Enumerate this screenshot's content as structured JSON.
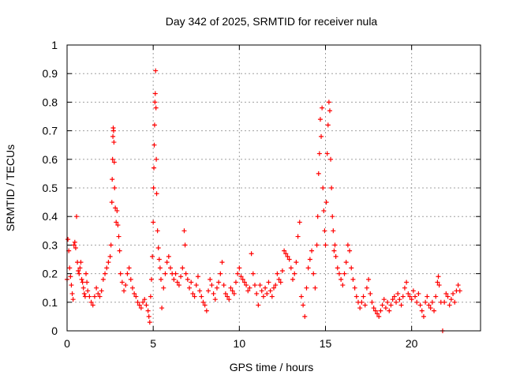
{
  "chart_data": {
    "type": "scatter",
    "title": "Day 342 of 2025, SRMTID for receiver nula",
    "xlabel": "GPS time / hours",
    "ylabel": "SRMTID / TECUs",
    "xlim": [
      0,
      24
    ],
    "ylim": [
      0,
      1
    ],
    "xticks": [
      0,
      5,
      10,
      15,
      20
    ],
    "yticks": [
      0,
      0.1,
      0.2,
      0.3,
      0.4,
      0.5,
      0.6,
      0.7,
      0.8,
      0.9,
      1
    ],
    "grid": true,
    "marker": "+",
    "color": "#ff0000",
    "series": [
      {
        "name": "SRMTID",
        "points": [
          [
            0.0,
            0.18
          ],
          [
            0.05,
            0.32
          ],
          [
            0.1,
            0.28
          ],
          [
            0.15,
            0.22
          ],
          [
            0.2,
            0.19
          ],
          [
            0.25,
            0.16
          ],
          [
            0.3,
            0.13
          ],
          [
            0.35,
            0.11
          ],
          [
            0.4,
            0.3
          ],
          [
            0.45,
            0.31
          ],
          [
            0.5,
            0.29
          ],
          [
            0.55,
            0.4
          ],
          [
            0.6,
            0.24
          ],
          [
            0.65,
            0.21
          ],
          [
            0.7,
            0.2
          ],
          [
            0.75,
            0.22
          ],
          [
            0.8,
            0.24
          ],
          [
            0.85,
            0.18
          ],
          [
            0.9,
            0.17
          ],
          [
            0.95,
            0.15
          ],
          [
            1.0,
            0.13
          ],
          [
            1.05,
            0.12
          ],
          [
            1.1,
            0.2
          ],
          [
            1.15,
            0.17
          ],
          [
            1.2,
            0.14
          ],
          [
            1.3,
            0.12
          ],
          [
            1.4,
            0.1
          ],
          [
            1.5,
            0.09
          ],
          [
            1.6,
            0.12
          ],
          [
            1.7,
            0.15
          ],
          [
            1.8,
            0.13
          ],
          [
            1.9,
            0.12
          ],
          [
            2.0,
            0.14
          ],
          [
            2.1,
            0.18
          ],
          [
            2.2,
            0.2
          ],
          [
            2.3,
            0.22
          ],
          [
            2.4,
            0.24
          ],
          [
            2.5,
            0.26
          ],
          [
            2.55,
            0.3
          ],
          [
            2.6,
            0.45
          ],
          [
            2.62,
            0.53
          ],
          [
            2.64,
            0.6
          ],
          [
            2.66,
            0.68
          ],
          [
            2.68,
            0.71
          ],
          [
            2.7,
            0.7
          ],
          [
            2.72,
            0.66
          ],
          [
            2.74,
            0.59
          ],
          [
            2.76,
            0.5
          ],
          [
            2.8,
            0.43
          ],
          [
            2.85,
            0.38
          ],
          [
            2.9,
            0.42
          ],
          [
            2.95,
            0.37
          ],
          [
            3.0,
            0.33
          ],
          [
            3.05,
            0.28
          ],
          [
            3.1,
            0.2
          ],
          [
            3.2,
            0.17
          ],
          [
            3.3,
            0.14
          ],
          [
            3.4,
            0.16
          ],
          [
            3.5,
            0.2
          ],
          [
            3.6,
            0.22
          ],
          [
            3.7,
            0.18
          ],
          [
            3.8,
            0.15
          ],
          [
            3.9,
            0.13
          ],
          [
            4.0,
            0.12
          ],
          [
            4.1,
            0.1
          ],
          [
            4.2,
            0.09
          ],
          [
            4.3,
            0.08
          ],
          [
            4.4,
            0.1
          ],
          [
            4.5,
            0.11
          ],
          [
            4.6,
            0.09
          ],
          [
            4.7,
            0.07
          ],
          [
            4.75,
            0.05
          ],
          [
            4.8,
            0.03
          ],
          [
            4.85,
            0.12
          ],
          [
            4.9,
            0.18
          ],
          [
            4.95,
            0.26
          ],
          [
            5.0,
            0.38
          ],
          [
            5.02,
            0.5
          ],
          [
            5.04,
            0.57
          ],
          [
            5.06,
            0.65
          ],
          [
            5.08,
            0.72
          ],
          [
            5.1,
            0.8
          ],
          [
            5.12,
            0.83
          ],
          [
            5.14,
            0.91
          ],
          [
            5.16,
            0.78
          ],
          [
            5.18,
            0.6
          ],
          [
            5.2,
            0.48
          ],
          [
            5.25,
            0.35
          ],
          [
            5.3,
            0.29
          ],
          [
            5.35,
            0.25
          ],
          [
            5.4,
            0.22
          ],
          [
            5.45,
            0.18
          ],
          [
            5.5,
            0.08
          ],
          [
            5.6,
            0.15
          ],
          [
            5.7,
            0.2
          ],
          [
            5.8,
            0.24
          ],
          [
            5.9,
            0.26
          ],
          [
            6.0,
            0.22
          ],
          [
            6.1,
            0.2
          ],
          [
            6.2,
            0.18
          ],
          [
            6.3,
            0.2
          ],
          [
            6.4,
            0.17
          ],
          [
            6.5,
            0.16
          ],
          [
            6.6,
            0.19
          ],
          [
            6.7,
            0.22
          ],
          [
            6.8,
            0.35
          ],
          [
            6.85,
            0.3
          ],
          [
            6.9,
            0.2
          ],
          [
            7.0,
            0.18
          ],
          [
            7.1,
            0.15
          ],
          [
            7.2,
            0.17
          ],
          [
            7.3,
            0.13
          ],
          [
            7.4,
            0.12
          ],
          [
            7.5,
            0.16
          ],
          [
            7.6,
            0.19
          ],
          [
            7.7,
            0.14
          ],
          [
            7.8,
            0.12
          ],
          [
            7.9,
            0.1
          ],
          [
            8.0,
            0.09
          ],
          [
            8.1,
            0.07
          ],
          [
            8.2,
            0.14
          ],
          [
            8.3,
            0.18
          ],
          [
            8.4,
            0.16
          ],
          [
            8.5,
            0.13
          ],
          [
            8.6,
            0.11
          ],
          [
            8.7,
            0.15
          ],
          [
            8.8,
            0.17
          ],
          [
            8.9,
            0.2
          ],
          [
            9.0,
            0.24
          ],
          [
            9.1,
            0.16
          ],
          [
            9.2,
            0.13
          ],
          [
            9.3,
            0.12
          ],
          [
            9.4,
            0.11
          ],
          [
            9.5,
            0.15
          ],
          [
            9.6,
            0.14
          ],
          [
            9.7,
            0.13
          ],
          [
            9.8,
            0.17
          ],
          [
            9.9,
            0.2
          ],
          [
            10.0,
            0.22
          ],
          [
            10.1,
            0.19
          ],
          [
            10.2,
            0.18
          ],
          [
            10.3,
            0.17
          ],
          [
            10.4,
            0.16
          ],
          [
            10.5,
            0.14
          ],
          [
            10.6,
            0.15
          ],
          [
            10.7,
            0.27
          ],
          [
            10.8,
            0.2
          ],
          [
            10.9,
            0.16
          ],
          [
            11.0,
            0.13
          ],
          [
            11.1,
            0.09
          ],
          [
            11.2,
            0.16
          ],
          [
            11.3,
            0.14
          ],
          [
            11.4,
            0.12
          ],
          [
            11.5,
            0.15
          ],
          [
            11.6,
            0.13
          ],
          [
            11.7,
            0.17
          ],
          [
            11.8,
            0.14
          ],
          [
            11.9,
            0.12
          ],
          [
            12.0,
            0.15
          ],
          [
            12.1,
            0.16
          ],
          [
            12.2,
            0.2
          ],
          [
            12.3,
            0.18
          ],
          [
            12.4,
            0.17
          ],
          [
            12.5,
            0.21
          ],
          [
            12.6,
            0.28
          ],
          [
            12.7,
            0.27
          ],
          [
            12.8,
            0.26
          ],
          [
            12.9,
            0.25
          ],
          [
            13.0,
            0.22
          ],
          [
            13.1,
            0.18
          ],
          [
            13.2,
            0.2
          ],
          [
            13.3,
            0.24
          ],
          [
            13.4,
            0.33
          ],
          [
            13.5,
            0.38
          ],
          [
            13.6,
            0.12
          ],
          [
            13.7,
            0.09
          ],
          [
            13.8,
            0.05
          ],
          [
            13.9,
            0.15
          ],
          [
            14.0,
            0.22
          ],
          [
            14.1,
            0.25
          ],
          [
            14.2,
            0.28
          ],
          [
            14.3,
            0.2
          ],
          [
            14.4,
            0.15
          ],
          [
            14.5,
            0.3
          ],
          [
            14.55,
            0.4
          ],
          [
            14.6,
            0.55
          ],
          [
            14.65,
            0.62
          ],
          [
            14.7,
            0.74
          ],
          [
            14.75,
            0.68
          ],
          [
            14.8,
            0.78
          ],
          [
            14.85,
            0.5
          ],
          [
            14.9,
            0.42
          ],
          [
            14.95,
            0.35
          ],
          [
            15.0,
            0.3
          ],
          [
            15.05,
            0.45
          ],
          [
            15.1,
            0.62
          ],
          [
            15.15,
            0.72
          ],
          [
            15.2,
            0.8
          ],
          [
            15.25,
            0.77
          ],
          [
            15.3,
            0.6
          ],
          [
            15.35,
            0.5
          ],
          [
            15.4,
            0.4
          ],
          [
            15.45,
            0.35
          ],
          [
            15.5,
            0.28
          ],
          [
            15.55,
            0.3
          ],
          [
            15.6,
            0.26
          ],
          [
            15.7,
            0.22
          ],
          [
            15.8,
            0.2
          ],
          [
            15.9,
            0.18
          ],
          [
            16.0,
            0.16
          ],
          [
            16.1,
            0.2
          ],
          [
            16.2,
            0.24
          ],
          [
            16.3,
            0.3
          ],
          [
            16.4,
            0.28
          ],
          [
            16.5,
            0.22
          ],
          [
            16.6,
            0.18
          ],
          [
            16.7,
            0.15
          ],
          [
            16.8,
            0.12
          ],
          [
            16.9,
            0.1
          ],
          [
            17.0,
            0.08
          ],
          [
            17.1,
            0.1
          ],
          [
            17.2,
            0.12
          ],
          [
            17.3,
            0.09
          ],
          [
            17.4,
            0.15
          ],
          [
            17.5,
            0.18
          ],
          [
            17.6,
            0.13
          ],
          [
            17.7,
            0.1
          ],
          [
            17.8,
            0.08
          ],
          [
            17.9,
            0.07
          ],
          [
            18.0,
            0.06
          ],
          [
            18.1,
            0.05
          ],
          [
            18.2,
            0.07
          ],
          [
            18.3,
            0.09
          ],
          [
            18.4,
            0.11
          ],
          [
            18.5,
            0.08
          ],
          [
            18.6,
            0.1
          ],
          [
            18.7,
            0.07
          ],
          [
            18.8,
            0.09
          ],
          [
            18.9,
            0.11
          ],
          [
            19.0,
            0.12
          ],
          [
            19.1,
            0.1
          ],
          [
            19.2,
            0.13
          ],
          [
            19.3,
            0.11
          ],
          [
            19.4,
            0.09
          ],
          [
            19.5,
            0.12
          ],
          [
            19.6,
            0.15
          ],
          [
            19.7,
            0.17
          ],
          [
            19.8,
            0.13
          ],
          [
            19.9,
            0.12
          ],
          [
            20.0,
            0.11
          ],
          [
            20.1,
            0.14
          ],
          [
            20.2,
            0.12
          ],
          [
            20.3,
            0.1
          ],
          [
            20.4,
            0.13
          ],
          [
            20.5,
            0.09
          ],
          [
            20.6,
            0.07
          ],
          [
            20.7,
            0.05
          ],
          [
            20.8,
            0.1
          ],
          [
            20.9,
            0.12
          ],
          [
            21.0,
            0.09
          ],
          [
            21.1,
            0.08
          ],
          [
            21.2,
            0.1
          ],
          [
            21.3,
            0.07
          ],
          [
            21.4,
            0.12
          ],
          [
            21.5,
            0.17
          ],
          [
            21.55,
            0.19
          ],
          [
            21.6,
            0.16
          ],
          [
            21.7,
            0.1
          ],
          [
            21.8,
            0.0
          ],
          [
            21.9,
            0.1
          ],
          [
            22.0,
            0.13
          ],
          [
            22.1,
            0.12
          ],
          [
            22.2,
            0.09
          ],
          [
            22.3,
            0.11
          ],
          [
            22.4,
            0.13
          ],
          [
            22.5,
            0.1
          ],
          [
            22.6,
            0.14
          ],
          [
            22.7,
            0.16
          ],
          [
            22.8,
            0.14
          ]
        ]
      }
    ]
  }
}
